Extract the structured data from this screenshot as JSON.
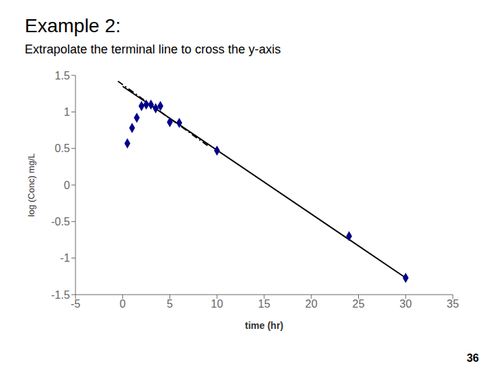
{
  "chart_data": {
    "type": "scatter",
    "title": "Example 2:",
    "subtitle": "Extrapolate the terminal line to cross the y-axis",
    "x_label": "time (hr)",
    "y_label": "log (Conc)  mg/L",
    "annotations": [
      "36"
    ],
    "xlim": [
      -5,
      35
    ],
    "xticks": [
      -5,
      0,
      5,
      10,
      15,
      20,
      25,
      30,
      35
    ],
    "ylim": [
      -1.5,
      1.5
    ],
    "yticks": [
      -1.5,
      -1,
      -0.5,
      0,
      0.5,
      1,
      1.5
    ],
    "grid": false,
    "series": [
      {
        "type": "scatter",
        "color": "#00008B",
        "marker": "diamond",
        "x": [
          0.5,
          1.0,
          1.5,
          2.0,
          2.5,
          3.0,
          3.5,
          4.0,
          5.0,
          6.0,
          10.0,
          24.0,
          30.0
        ],
        "values": [
          0.57,
          0.78,
          0.92,
          1.08,
          1.1,
          1.1,
          1.05,
          1.08,
          0.86,
          0.85,
          0.47,
          -0.7,
          -1.27
        ]
      },
      {
        "type": "line",
        "color": "#000000",
        "line_style": "solid",
        "x": [
          0.0,
          30.0
        ],
        "values": [
          1.35,
          -1.27
        ]
      },
      {
        "type": "line",
        "color": "#000000",
        "line_style": "dashdot",
        "x": [
          -0.5,
          9.0
        ],
        "values": [
          1.42,
          0.54
        ]
      }
    ]
  }
}
